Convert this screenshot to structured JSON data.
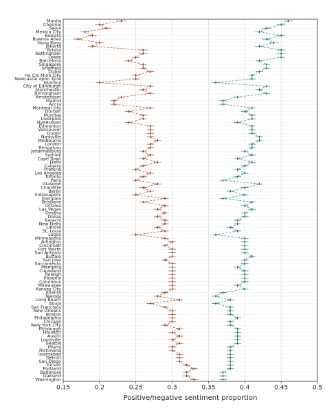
{
  "chart_data": {
    "type": "line",
    "orientation": "horizontal",
    "x_label": "Positive/negative sentiment proportion",
    "categories": [
      "Manila",
      "Chennai",
      "Seoul",
      "Mexico City",
      "Kolkata",
      "Buenos Aires",
      "Hong Kong",
      "Jakarta",
      "Bristol",
      "Nottingham",
      "Leeds",
      "Barcelona",
      "Singapore",
      "Sheffield",
      "Dubai",
      "Ho Chi Minh City",
      "Newcastle upon Tyne",
      "Istanbul",
      "City of Edinburgh",
      "Manchester",
      "Birmingham",
      "Amsterdam",
      "Madrid",
      "Accra",
      "Montreal city",
      "Durban",
      "Mumbai",
      "Liverpool",
      "Hyderabad",
      "Edmonton",
      "Vancouver",
      "Dublin",
      "Nashville",
      "Melbourne",
      "London",
      "Bengaluru",
      "Johannesburg",
      "Sydney",
      "Cape Town",
      "Delhi",
      "Calgary",
      "Pretoria",
      "Los Angeles",
      "Toronto",
      "Paris",
      "Glasgow",
      "Charlotte",
      "Berlin",
      "Indianapolis",
      "Kampala",
      "Brisbane",
      "Ottawa",
      "Las Vegas",
      "Omaha",
      "Dallas",
      "Karachi",
      "New Delhi",
      "Lahore",
      "St. Louis",
      "Lagos",
      "Minneapolis",
      "Arlington",
      "Cincinnati",
      "Fort Worth",
      "San Antonio",
      "Buffalo",
      "San Jose",
      "Sacramento",
      "Memphis",
      "Cleveland",
      "Raleigh",
      "Phoenix",
      "Columbus",
      "Milwaukee",
      "Kansas City",
      "Atlanta",
      "Nairobi",
      "Long Beach",
      "Abuja",
      "San Francisco",
      "New Orleans",
      "Boston",
      "Philadelphia",
      "Chicago",
      "New York City",
      "Pittsburgh",
      "Houston",
      "Austin",
      "Louisville",
      "Seattle",
      "Miami",
      "Richmond",
      "Islamabad",
      "Detroit",
      "San Diego",
      "Tucson",
      "Portland",
      "Baltimore",
      "Oakland",
      "Washington"
    ],
    "series": [
      {
        "color": "#c9552c",
        "values": [
          0.23,
          0.2,
          0.21,
          0.18,
          0.19,
          0.17,
          0.2,
          0.19,
          0.26,
          0.26,
          0.25,
          0.24,
          0.26,
          0.26,
          0.27,
          0.25,
          0.25,
          0.2,
          0.27,
          0.26,
          0.27,
          0.23,
          0.22,
          0.22,
          0.27,
          0.24,
          0.26,
          0.26,
          0.24,
          0.27,
          0.27,
          0.27,
          0.27,
          0.28,
          0.27,
          0.27,
          0.26,
          0.27,
          0.26,
          0.28,
          0.26,
          0.25,
          0.27,
          0.26,
          0.25,
          0.28,
          0.26,
          0.27,
          0.25,
          0.29,
          0.26,
          0.29,
          0.28,
          0.29,
          0.28,
          0.29,
          0.29,
          0.28,
          0.29,
          0.25,
          0.29,
          0.3,
          0.29,
          0.3,
          0.3,
          0.3,
          0.29,
          0.3,
          0.3,
          0.3,
          0.3,
          0.3,
          0.3,
          0.3,
          0.3,
          0.29,
          0.28,
          0.31,
          0.27,
          0.29,
          0.3,
          0.3,
          0.3,
          0.3,
          0.29,
          0.31,
          0.3,
          0.31,
          0.3,
          0.31,
          0.3,
          0.3,
          0.31,
          0.31,
          0.31,
          0.32,
          0.33,
          0.32,
          0.32,
          0.33
        ],
        "errors": [
          0.006,
          0.006,
          0.006,
          0.006,
          0.006,
          0.006,
          0.006,
          0.006,
          0.006,
          0.006,
          0.005,
          0.005,
          0.005,
          0.005,
          0.005,
          0.005,
          0.005,
          0.005,
          0.005,
          0.005,
          0.005,
          0.005,
          0.005,
          0.005,
          0.005,
          0.005,
          0.005,
          0.005,
          0.005,
          0.005,
          0.005,
          0.005,
          0.005,
          0.005,
          0.005,
          0.005,
          0.005,
          0.005,
          0.005,
          0.005,
          0.005,
          0.005,
          0.005,
          0.005,
          0.005,
          0.005,
          0.005,
          0.005,
          0.005,
          0.005,
          0.005,
          0.005,
          0.005,
          0.005,
          0.005,
          0.005,
          0.005,
          0.005,
          0.005,
          0.005,
          0.005,
          0.005,
          0.005,
          0.005,
          0.005,
          0.005,
          0.005,
          0.005,
          0.005,
          0.005,
          0.005,
          0.005,
          0.005,
          0.005,
          0.005,
          0.005,
          0.005,
          0.005,
          0.005,
          0.005,
          0.005,
          0.005,
          0.005,
          0.005,
          0.005,
          0.005,
          0.005,
          0.005,
          0.005,
          0.005,
          0.005,
          0.005,
          0.005,
          0.005,
          0.005,
          0.005,
          0.005,
          0.005,
          0.005,
          0.005
        ]
      },
      {
        "color": "#2e9e8e",
        "values": [
          0.46,
          0.45,
          0.43,
          0.42,
          0.45,
          0.43,
          0.44,
          0.42,
          0.45,
          0.45,
          0.45,
          0.42,
          0.43,
          0.43,
          0.42,
          0.41,
          0.41,
          0.36,
          0.43,
          0.42,
          0.43,
          0.39,
          0.37,
          0.37,
          0.41,
          0.4,
          0.41,
          0.41,
          0.39,
          0.41,
          0.41,
          0.41,
          0.42,
          0.42,
          0.41,
          0.41,
          0.4,
          0.41,
          0.39,
          0.41,
          0.4,
          0.39,
          0.4,
          0.39,
          0.37,
          0.42,
          0.4,
          0.38,
          0.4,
          0.37,
          0.41,
          0.4,
          0.41,
          0.4,
          0.4,
          0.39,
          0.39,
          0.38,
          0.39,
          0.36,
          0.4,
          0.4,
          0.4,
          0.4,
          0.4,
          0.41,
          0.4,
          0.4,
          0.39,
          0.4,
          0.4,
          0.4,
          0.4,
          0.39,
          0.4,
          0.37,
          0.36,
          0.38,
          0.36,
          0.38,
          0.38,
          0.38,
          0.39,
          0.38,
          0.38,
          0.39,
          0.39,
          0.39,
          0.39,
          0.39,
          0.38,
          0.38,
          0.38,
          0.38,
          0.38,
          0.38,
          0.38,
          0.37,
          0.37,
          0.37
        ],
        "errors": [
          0.006,
          0.006,
          0.006,
          0.006,
          0.006,
          0.006,
          0.006,
          0.006,
          0.006,
          0.006,
          0.005,
          0.005,
          0.005,
          0.005,
          0.005,
          0.005,
          0.005,
          0.005,
          0.005,
          0.005,
          0.005,
          0.005,
          0.005,
          0.005,
          0.005,
          0.005,
          0.005,
          0.005,
          0.005,
          0.005,
          0.005,
          0.005,
          0.005,
          0.005,
          0.005,
          0.005,
          0.005,
          0.005,
          0.005,
          0.005,
          0.005,
          0.005,
          0.005,
          0.005,
          0.005,
          0.005,
          0.005,
          0.005,
          0.005,
          0.005,
          0.005,
          0.005,
          0.005,
          0.005,
          0.005,
          0.005,
          0.005,
          0.005,
          0.005,
          0.005,
          0.005,
          0.005,
          0.005,
          0.005,
          0.005,
          0.005,
          0.005,
          0.005,
          0.005,
          0.005,
          0.005,
          0.005,
          0.005,
          0.005,
          0.005,
          0.005,
          0.005,
          0.005,
          0.005,
          0.005,
          0.005,
          0.005,
          0.005,
          0.005,
          0.005,
          0.005,
          0.005,
          0.005,
          0.005,
          0.005,
          0.005,
          0.005,
          0.005,
          0.005,
          0.005,
          0.005,
          0.005,
          0.005,
          0.005,
          0.005
        ]
      }
    ],
    "xlim": [
      0.15,
      0.5
    ],
    "xticks": [
      0.15,
      0.2,
      0.25,
      0.3,
      0.35,
      0.4,
      0.45,
      0.5
    ],
    "grid": true
  }
}
